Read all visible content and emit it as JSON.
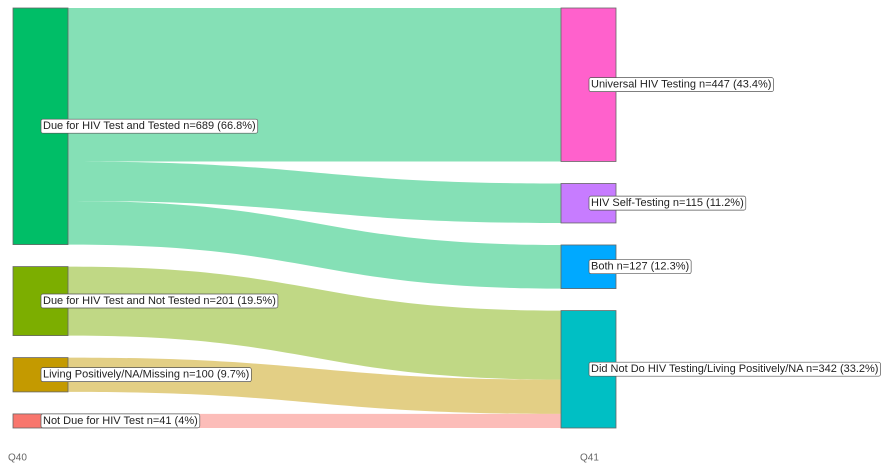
{
  "chart_data": {
    "type": "sankey",
    "columns": [
      "Q40",
      "Q41"
    ],
    "nodes": [
      {
        "label": "Due for HIV Test and Tested n=689 (66.8%)",
        "value": 689,
        "column": 0,
        "color": "#00be67"
      },
      {
        "label": "Due for HIV Test and Not Tested n=201 (19.5%)",
        "value": 201,
        "column": 0,
        "color": "#7cae00"
      },
      {
        "label": "Living Positively/NA/Missing n=100 (9.7%)",
        "value": 100,
        "column": 0,
        "color": "#c49a00"
      },
      {
        "label": "Not Due for HIV Test n=41 (4%)",
        "value": 41,
        "column": 0,
        "color": "#f8766d"
      },
      {
        "label": "Universal HIV Testing n=447 (43.4%)",
        "value": 447,
        "column": 1,
        "color": "#ff61cc"
      },
      {
        "label": "HIV Self-Testing n=115 (11.2%)",
        "value": 115,
        "column": 1,
        "color": "#c77cff"
      },
      {
        "label": "Both n=127 (12.3%)",
        "value": 127,
        "column": 1,
        "color": "#00a9ff"
      },
      {
        "label": "Did Not Do HIV Testing/Living Positively/NA n=342 (33.2%)",
        "value": 342,
        "column": 1,
        "color": "#00bfc4"
      }
    ],
    "links": [
      {
        "source": 0,
        "target": 4,
        "value": 447
      },
      {
        "source": 0,
        "target": 5,
        "value": 115
      },
      {
        "source": 0,
        "target": 6,
        "value": 127
      },
      {
        "source": 1,
        "target": 7,
        "value": 201
      },
      {
        "source": 2,
        "target": 7,
        "value": 100
      },
      {
        "source": 3,
        "target": 7,
        "value": 41
      }
    ]
  }
}
